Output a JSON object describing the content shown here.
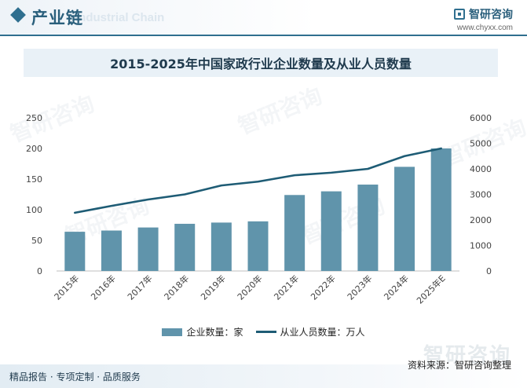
{
  "header": {
    "section_title": "产业链",
    "section_subtitle": "Industrial Chain",
    "brand_name": "智研咨询",
    "brand_url": "www.chyxx.com"
  },
  "watermark_text": "智研咨询",
  "chart_data": {
    "type": "bar+line",
    "title": "2015-2025年中国家政行业企业数量及从业人员数量",
    "categories": [
      "2015年",
      "2016年",
      "2017年",
      "2018年",
      "2019年",
      "2020年",
      "2021年",
      "2022年",
      "2023年",
      "2024年",
      "2025年E"
    ],
    "series": [
      {
        "name": "企业数量：家",
        "type": "bar",
        "axis": "left",
        "color": "#6094ab",
        "values": [
          64,
          66,
          71,
          77,
          79,
          81,
          124,
          130,
          141,
          170,
          200
        ]
      },
      {
        "name": "从业人员数量：万人",
        "type": "line",
        "axis": "right",
        "color": "#1e5c75",
        "values": [
          2280,
          2550,
          2800,
          3000,
          3350,
          3500,
          3750,
          3850,
          4000,
          4500,
          4800
        ]
      }
    ],
    "y_left": {
      "min": 0,
      "max": 250,
      "ticks": [
        0,
        50,
        100,
        150,
        200,
        250
      ]
    },
    "y_right": {
      "min": 0,
      "max": 6000,
      "ticks": [
        0,
        1000,
        2000,
        3000,
        4000,
        5000,
        6000
      ]
    },
    "legend_position": "bottom",
    "grid": false
  },
  "footer": {
    "slogan": "精品报告 · 专项定制 · 品质服务",
    "source": "资料来源：智研咨询整理",
    "brand_mark": "智研咨询"
  }
}
